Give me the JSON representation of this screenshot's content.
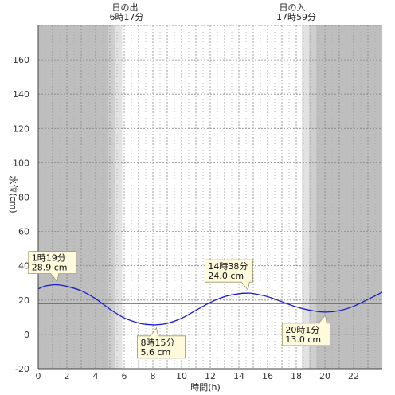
{
  "sun": {
    "sunrise_label": "日の出",
    "sunrise_time": "6時17分",
    "sunset_label": "日の入",
    "sunset_time": "17時59分"
  },
  "chart_data": {
    "type": "line",
    "xlabel": "時間(h)",
    "ylabel": "水位(cm)",
    "xlim": [
      0,
      24
    ],
    "ylim": [
      -20,
      180
    ],
    "x_ticks": [
      0,
      2,
      4,
      6,
      8,
      10,
      12,
      14,
      16,
      18,
      20,
      22
    ],
    "y_ticks": [
      -20,
      0,
      20,
      40,
      60,
      80,
      100,
      120,
      140,
      160
    ],
    "vertical_grid_every_hours": 0.5,
    "reference_line": {
      "y": 18,
      "color": "#ee2222"
    },
    "series": [
      {
        "color": "#1a1ad0",
        "x": [
          0,
          0.5,
          1,
          1.32,
          2,
          3,
          4,
          5,
          6,
          7,
          7.5,
          8,
          8.25,
          9,
          10,
          11,
          12,
          13,
          14,
          14.63,
          15,
          16,
          17,
          18,
          19,
          20.02,
          21,
          22,
          23,
          24
        ],
        "y": [
          26.5,
          28.2,
          28.8,
          28.9,
          28.0,
          25.4,
          20.8,
          14.7,
          9.6,
          6.6,
          5.9,
          5.6,
          5.6,
          6.4,
          9.4,
          14.0,
          18.6,
          22.0,
          23.7,
          24.0,
          23.8,
          22.0,
          19.0,
          16.0,
          14.0,
          13.0,
          13.8,
          16.4,
          20.4,
          24.6
        ]
      }
    ],
    "annotations": [
      {
        "time": "1時19分",
        "value": "28.9 cm",
        "x": 1.32,
        "y": 28.9
      },
      {
        "time": "8時15分",
        "value": "5.6 cm",
        "x": 8.25,
        "y": 5.6
      },
      {
        "time": "14時38分",
        "value": "24.0 cm",
        "x": 14.63,
        "y": 24.0
      },
      {
        "time": "20時1分",
        "value": "13.0 cm",
        "x": 20.02,
        "y": 13.0
      }
    ],
    "daylight": {
      "sunrise_hour": 6.28,
      "sunset_hour": 17.98,
      "twilight_bands_hours": [
        [
          4.85,
          5.35
        ],
        [
          5.35,
          5.85
        ],
        [
          18.4,
          18.9
        ],
        [
          18.9,
          19.4
        ]
      ]
    },
    "colors": {
      "night": "#bebebe",
      "twilight_dark": "#cecece",
      "twilight_light": "#e2e2e2",
      "day": "#ffffff",
      "callout_fill": "#fffadc",
      "callout_stroke": "#999966"
    }
  }
}
